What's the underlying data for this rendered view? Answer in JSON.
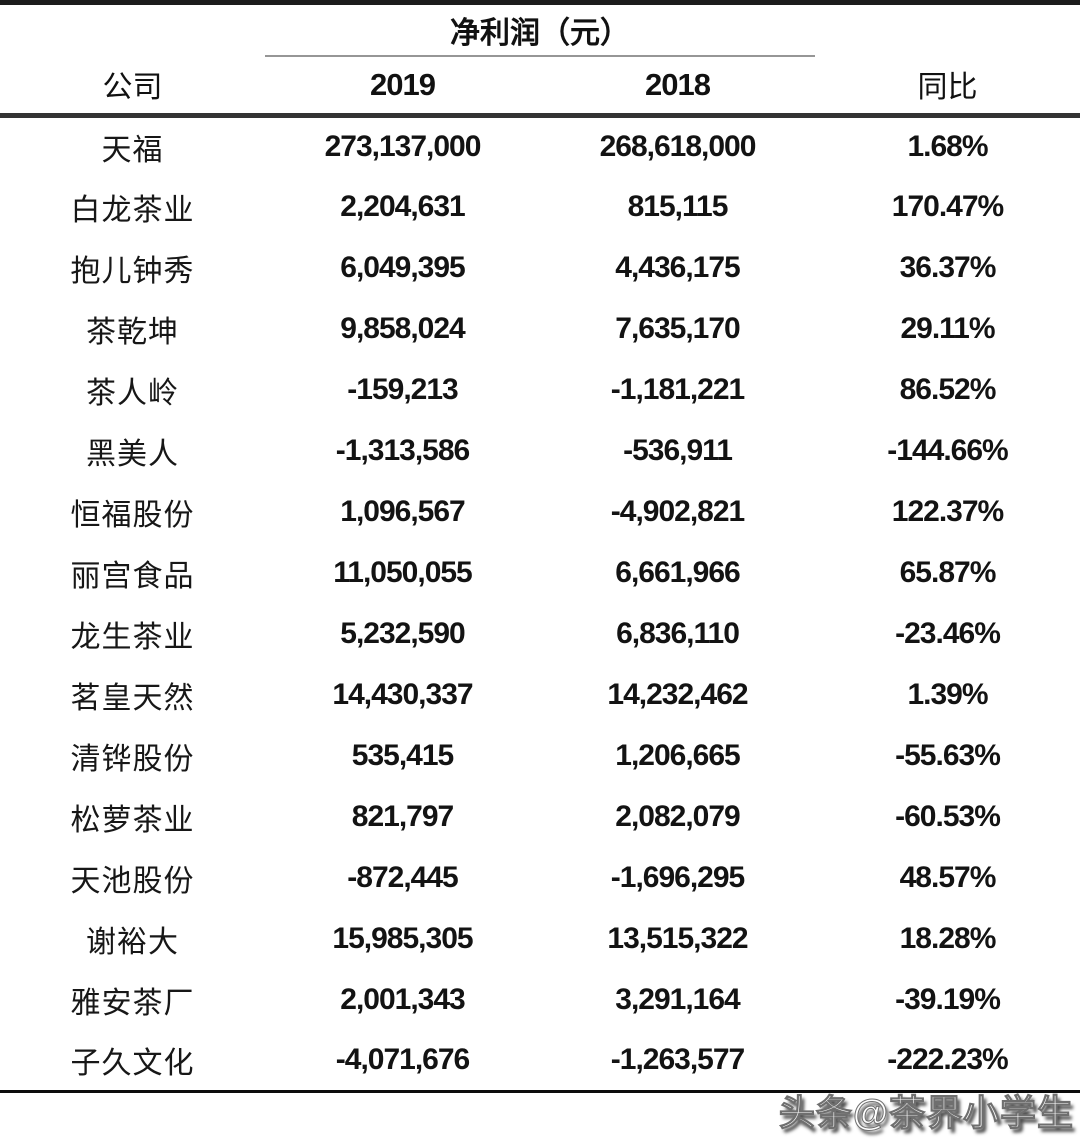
{
  "chart_data": {
    "type": "table",
    "title": "净利润（元）",
    "unit_note": "元",
    "columns": [
      "公司",
      "2019",
      "2018",
      "同比"
    ],
    "rows": [
      [
        "天福",
        "273,137,000",
        "268,618,000",
        "1.68%"
      ],
      [
        "白龙茶业",
        "2,204,631",
        "815,115",
        "170.47%"
      ],
      [
        "抱儿钟秀",
        "6,049,395",
        "4,436,175",
        "36.37%"
      ],
      [
        "茶乾坤",
        "9,858,024",
        "7,635,170",
        "29.11%"
      ],
      [
        "茶人岭",
        "-159,213",
        "-1,181,221",
        "86.52%"
      ],
      [
        "黑美人",
        "-1,313,586",
        "-536,911",
        "-144.66%"
      ],
      [
        "恒福股份",
        "1,096,567",
        "-4,902,821",
        "122.37%"
      ],
      [
        "丽宫食品",
        "11,050,055",
        "6,661,966",
        "65.87%"
      ],
      [
        "龙生茶业",
        "5,232,590",
        "6,836,110",
        "-23.46%"
      ],
      [
        "茗皇天然",
        "14,430,337",
        "14,232,462",
        "1.39%"
      ],
      [
        "清铧股份",
        "535,415",
        "1,206,665",
        "-55.63%"
      ],
      [
        "松萝茶业",
        "821,797",
        "2,082,079",
        "-60.53%"
      ],
      [
        "天池股份",
        "-872,445",
        "-1,696,295",
        "48.57%"
      ],
      [
        "谢裕大",
        "15,985,305",
        "13,515,322",
        "18.28%"
      ],
      [
        "雅安茶厂",
        "2,001,343",
        "3,291,164",
        "-39.19%"
      ],
      [
        "子久文化",
        "-4,071,676",
        "-1,263,577",
        "-222.23%"
      ]
    ]
  },
  "watermark": {
    "text": "头条@茶界小学生"
  }
}
